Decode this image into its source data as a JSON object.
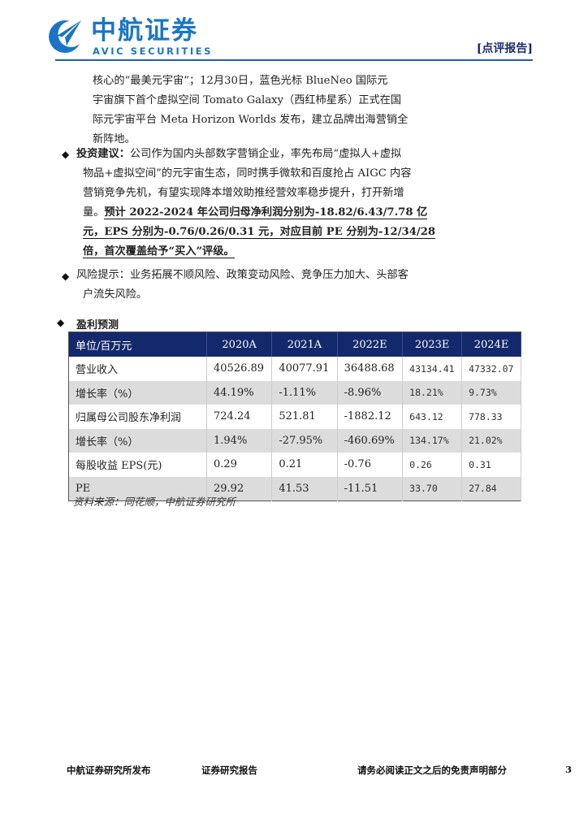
{
  "header": {
    "brand_cn": "中航证券",
    "brand_en": "AVIC SECURITIES",
    "logo_text": "AVIC",
    "report_type": "[点评报告]",
    "brand_color": "#1b75c4"
  },
  "body": {
    "continuation_lines": [
      "核心的“最美元宇宙”；12月30日，蓝色光标 BlueNeo 国际元",
      "宇宙旗下首个虚拟空间 Tomato Galaxy（西红柿星系）正式在国",
      "际元宇宙平台 Meta Horizon Worlds 发布，建立品牌出海营销全",
      "新阵地。"
    ],
    "investment": {
      "label": "投资建议：",
      "lines": [
        "公司作为国内头部数字营销企业，率先布局“虚拟人+虚拟",
        "物品+虚拟空间”的元宇宙生态，同时携手微软和百度抢占 AIGC 内容",
        "营销竞争先机，有望实现降本增效助推经营效率稳步提升，打开新增"
      ],
      "line4_plain": "量。",
      "line4_bold": "预计 2022-2024 年公司归母净利润分别为-18.82/6.43/7.78 亿",
      "bold_lines": [
        "元，EPS 分别为-0.76/0.26/0.31 元，对应目前 PE 分别为-12/34/28",
        "倍，首次覆盖给予“买入”评级。"
      ]
    },
    "risk": {
      "label": "风险提示：",
      "lines": [
        "业务拓展不顺风险、政策变动风险、竞争压力加大、头部客",
        "户流失风险。"
      ]
    }
  },
  "forecast": {
    "section_title": "盈利预测",
    "header_color": "#14296b",
    "columns": [
      "单位/百万元",
      "2020A",
      "2021A",
      "2022E",
      "2023E",
      "2024E"
    ],
    "rows": [
      [
        "营业收入",
        "40526.89",
        "40077.91",
        "36488.68",
        "43134.41",
        "47332.07"
      ],
      [
        "增长率（%）",
        "44.19%",
        "-1.11%",
        "-8.96%",
        "18.21%",
        "9.73%"
      ],
      [
        "归属母公司股东净利润",
        "724.24",
        "521.81",
        "-1882.12",
        "643.12",
        "778.33"
      ],
      [
        "增长率（%）",
        "1.94%",
        "-27.95%",
        "-460.69%",
        "134.17%",
        "21.02%"
      ],
      [
        "每股收益 EPS(元)",
        "0.29",
        "0.21",
        "-0.76",
        "0.26",
        "0.31"
      ],
      [
        "PE",
        "29.92",
        "41.53",
        "-11.51",
        "33.70",
        "27.84"
      ]
    ],
    "source": "资料来源：同花顺，中航证券研究所"
  },
  "footer": {
    "left": "中航证券研究所发布",
    "center": "证券研究报告",
    "right": "请务必阅读正文之后的免责声明部分",
    "page": "3"
  }
}
